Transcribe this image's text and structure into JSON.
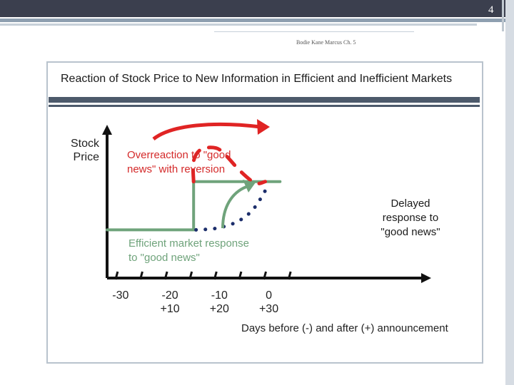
{
  "slide": {
    "page_number": "4",
    "caption": "Bodie Kane Marcus Ch. 5"
  },
  "colors": {
    "red": "#e02424",
    "green": "#6fa37b",
    "navy": "#1c2e6b",
    "axis": "#111111"
  },
  "chart_data": {
    "type": "line",
    "title": "Reaction of Stock Price to New Information in Efficient and Inefficient Markets",
    "ylabel": "Stock Price",
    "xlabel": "Days before (-) and after (+) announcement",
    "xlim": [
      -32,
      33
    ],
    "ylim": [
      0,
      10
    ],
    "x_ticks": [
      -30,
      -25,
      -20,
      -15,
      -10,
      -5,
      0,
      5
    ],
    "tick_labels": [
      {
        "x": -30,
        "label": [
          "-30"
        ]
      },
      {
        "x": -20,
        "label": [
          "-20",
          "+10"
        ]
      },
      {
        "x": -10,
        "label": [
          "-10",
          "+20"
        ]
      },
      {
        "x": 0,
        "label": [
          "0",
          "+30"
        ]
      }
    ],
    "series": [
      {
        "style": "solid",
        "color": "green",
        "points": [
          [
            -32,
            3.3
          ],
          [
            -14.5,
            3.3
          ],
          [
            -14.5,
            6.6
          ],
          [
            3.0,
            6.6
          ]
        ]
      },
      {
        "style": "dashed",
        "color": "red",
        "points": [
          [
            -14.5,
            6.6
          ],
          [
            -14.5,
            8.0
          ],
          [
            -13.0,
            8.8
          ],
          [
            -10.0,
            8.9
          ],
          [
            -8.0,
            8.4
          ],
          [
            -5.0,
            7.3
          ],
          [
            -2.0,
            6.5
          ],
          [
            0.0,
            6.6
          ]
        ]
      },
      {
        "style": "dotted",
        "color": "navy",
        "points": [
          [
            -14.0,
            3.3
          ],
          [
            -10.0,
            3.4
          ],
          [
            -6.0,
            3.8
          ],
          [
            -3.0,
            4.5
          ],
          [
            -1.0,
            5.4
          ],
          [
            0.5,
            6.3
          ]
        ]
      }
    ],
    "annotations": [
      {
        "id": "overreaction",
        "text": "Overreaction to \"good\nnews\" with reversion",
        "color": "red"
      },
      {
        "id": "efficient",
        "text": "Efficient market response\nto \"good news\"",
        "color": "green"
      },
      {
        "id": "delayed",
        "text": "Delayed\nresponse to\n\"good news\"",
        "color": "navy"
      }
    ]
  }
}
